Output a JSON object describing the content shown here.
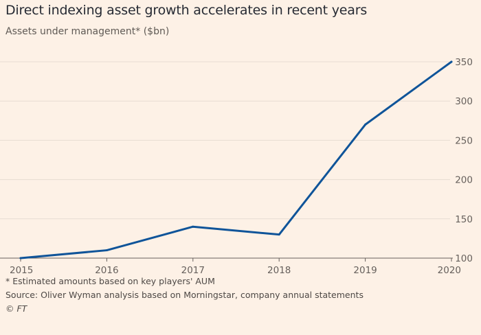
{
  "chart_data": {
    "type": "line",
    "title": "Direct indexing asset growth accelerates in recent years",
    "subtitle": "Assets under management* ($bn)",
    "x": [
      "2015",
      "2016",
      "2017",
      "2018",
      "2019",
      "2020"
    ],
    "series": [
      {
        "name": "Assets under management",
        "values": [
          100,
          110,
          140,
          130,
          270,
          350
        ]
      }
    ],
    "yticks": [
      100,
      150,
      200,
      250,
      300,
      350
    ],
    "ylim": [
      100,
      350
    ],
    "ylabel": "",
    "xlabel": "",
    "grid": true,
    "line_color": "#0f5499",
    "grid_color": "#e7dcd2",
    "axis_color": "#66605c"
  },
  "notes": {
    "footnote": "* Estimated amounts based on key players' AUM",
    "source": "Source: Oliver Wyman analysis based on Morningstar, company annual statements",
    "credit": "© FT"
  }
}
